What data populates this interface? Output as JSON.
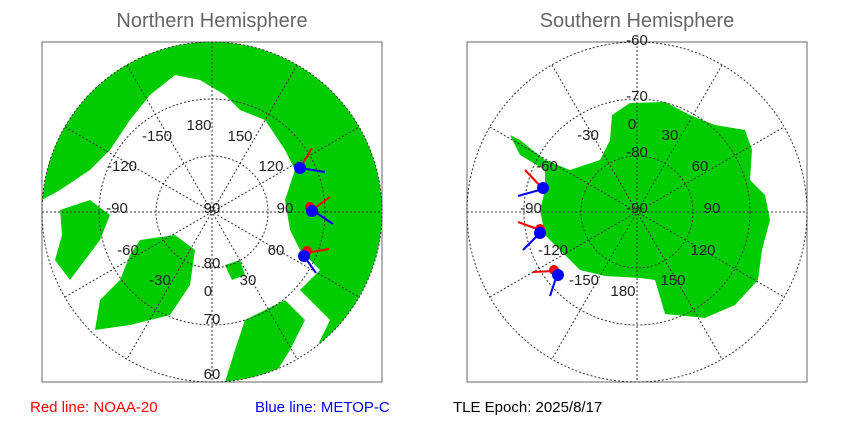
{
  "north": {
    "title": "Northern Hemisphere",
    "meridian_labels": [
      "180",
      "150",
      "120",
      "90",
      "60",
      "30",
      "0",
      "-30",
      "-60",
      "-90",
      "-120",
      "-150"
    ],
    "parallel_labels": [
      "90",
      "80",
      "70",
      "60"
    ]
  },
  "south": {
    "title": "Southern Hemisphere",
    "meridian_labels": [
      "0",
      "30",
      "60",
      "90",
      "120",
      "150",
      "180",
      "-150",
      "-120",
      "-90",
      "-60",
      "-30"
    ],
    "parallel_labels": [
      "-90",
      "-80",
      "-70",
      "-60"
    ]
  },
  "legend": {
    "red": "Red line: NOAA-20",
    "blue": "Blue line: METOP-C",
    "epoch": "TLE Epoch: 2025/8/17"
  },
  "colors": {
    "land": "#00cc00",
    "noaa20": "#ff0000",
    "metopc": "#0000ff"
  }
}
